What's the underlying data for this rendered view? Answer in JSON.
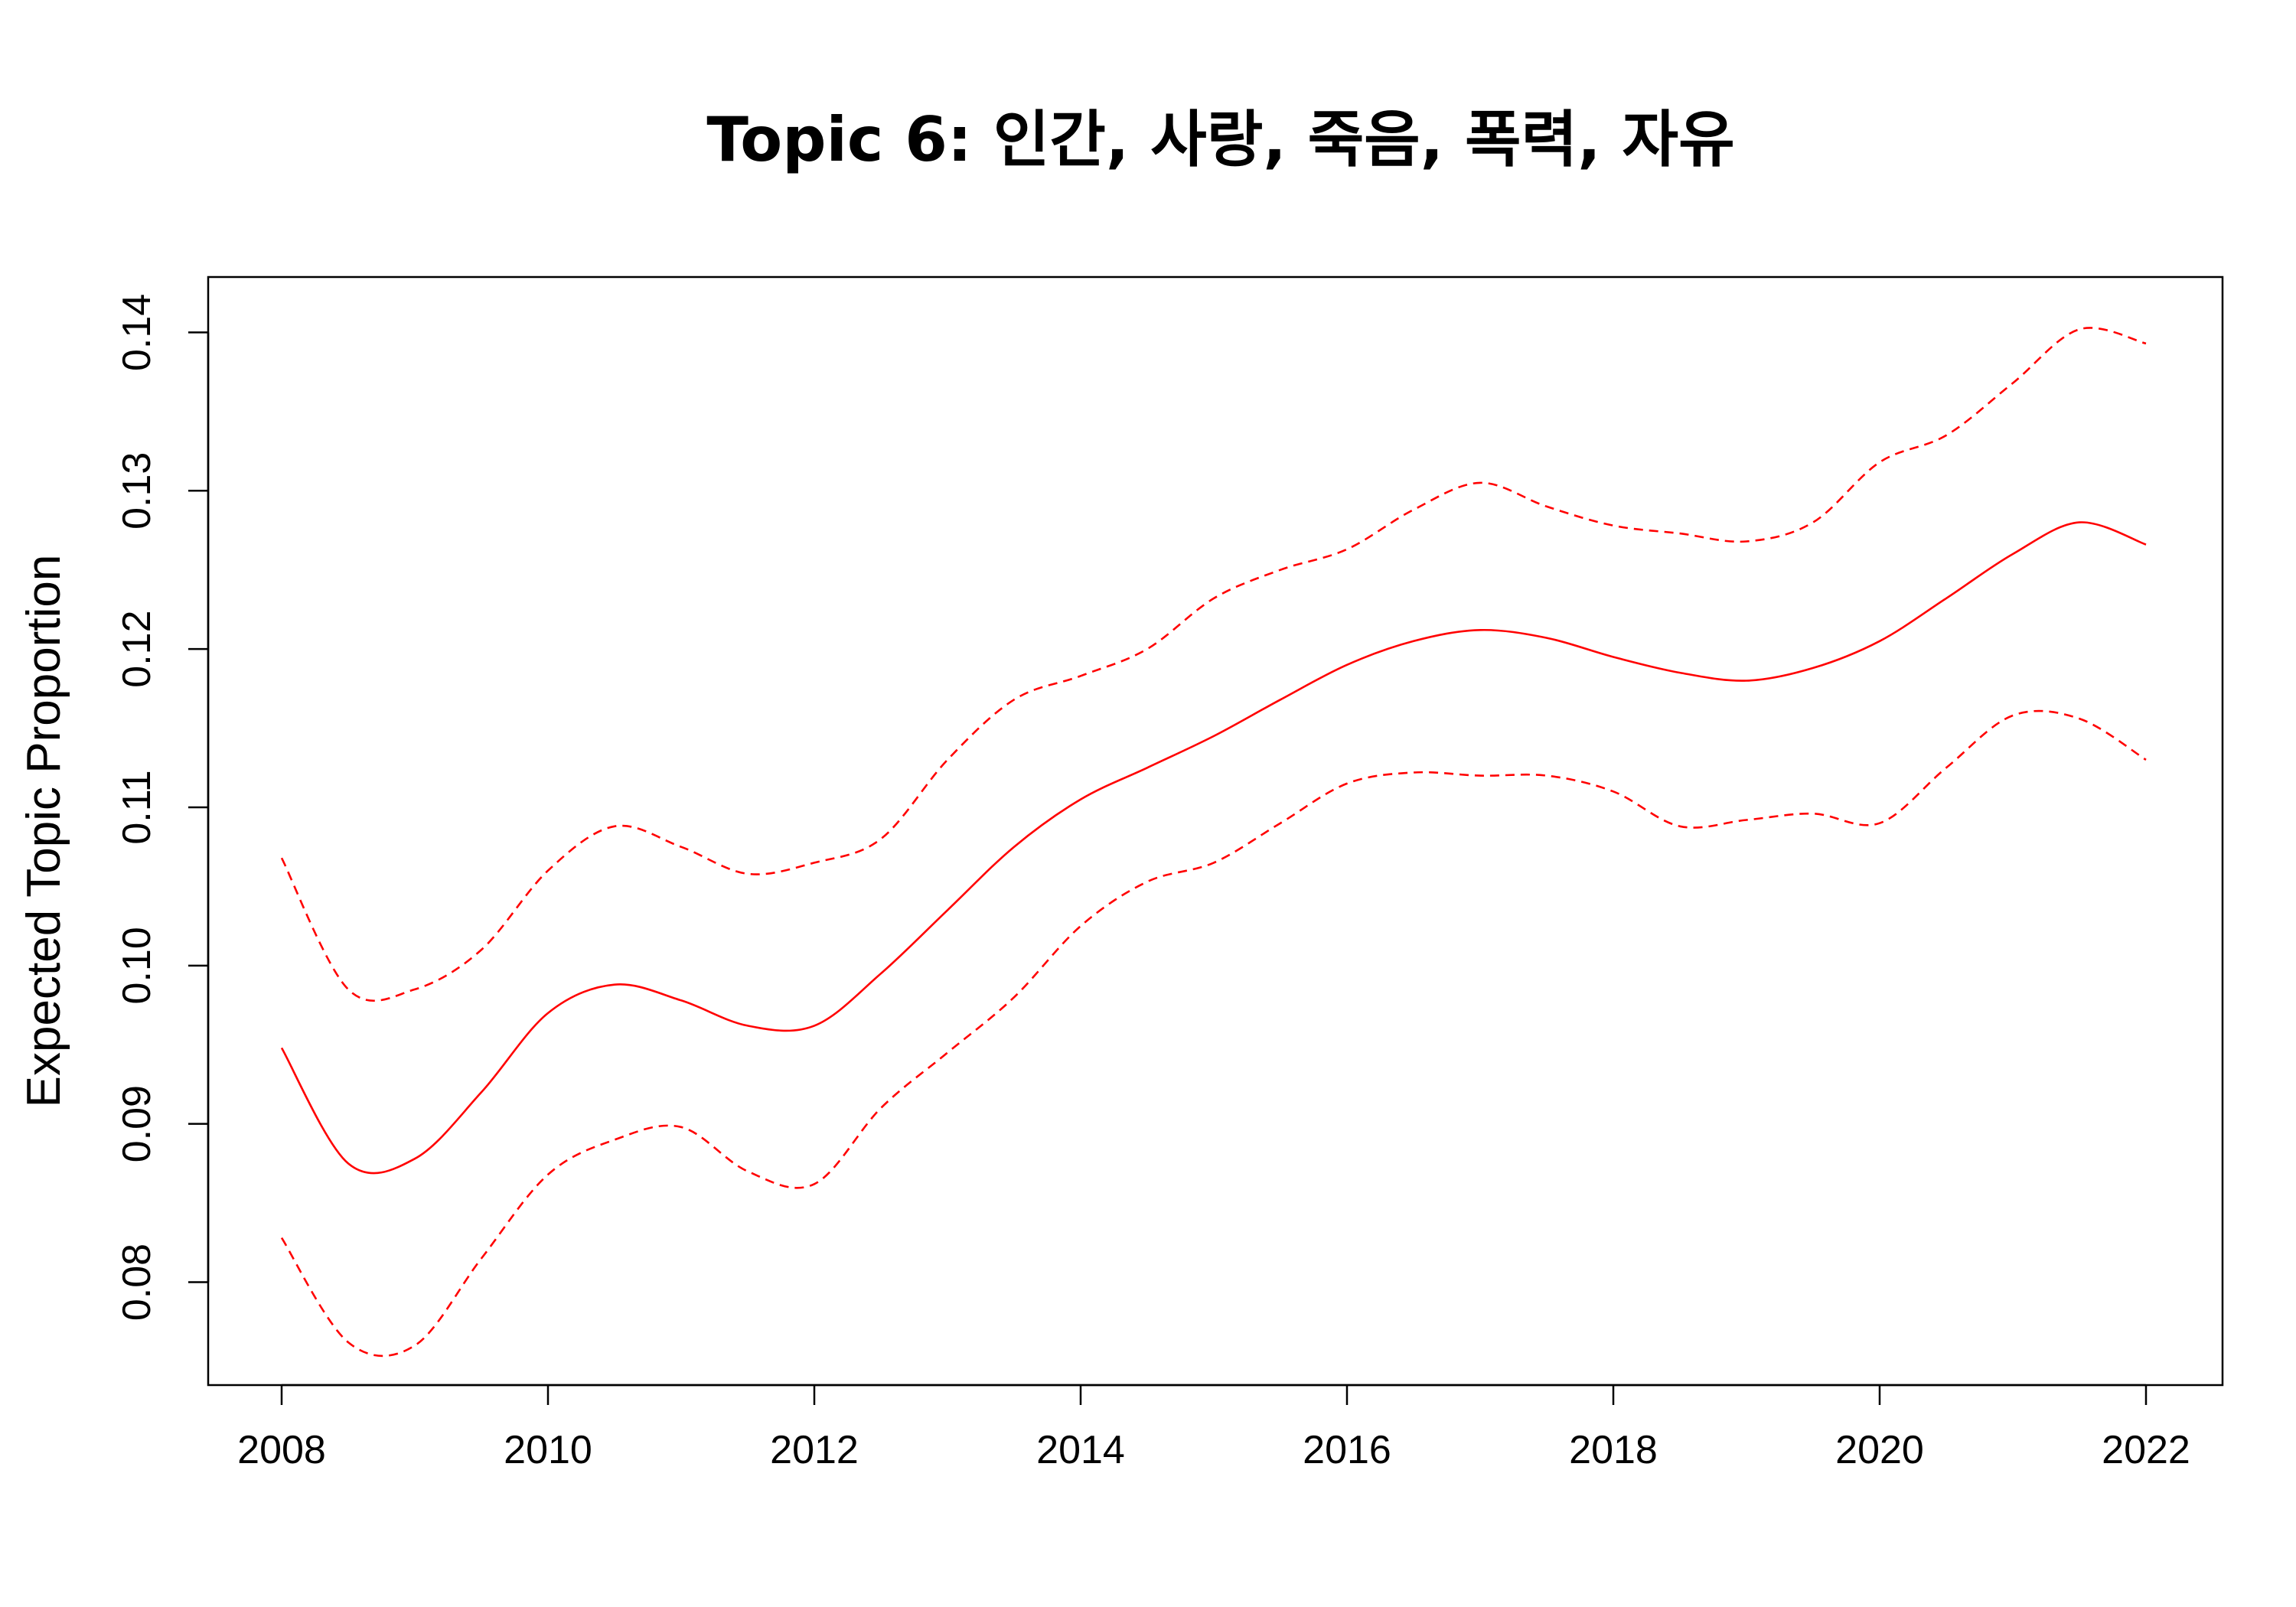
{
  "chart_data": {
    "type": "line",
    "title": "Topic 6: 인간, 사랑, 죽음, 폭력, 자유",
    "xlabel": "",
    "ylabel": "Expected Topic Proportion",
    "xlim": [
      2008,
      2022
    ],
    "ylim": [
      0.0735,
      0.1435
    ],
    "x_ticks": [
      "2008",
      "2010",
      "2012",
      "2014",
      "2016",
      "2018",
      "2020",
      "2022"
    ],
    "y_ticks": [
      "0.08",
      "0.09",
      "0.10",
      "0.11",
      "0.12",
      "0.13",
      "0.14"
    ],
    "grid": false,
    "legend": "none",
    "color": "#ff0000",
    "x": [
      2008.0,
      2008.5,
      2009.0,
      2009.5,
      2010.0,
      2010.5,
      2011.0,
      2011.5,
      2012.0,
      2012.5,
      2013.0,
      2013.5,
      2014.0,
      2014.5,
      2015.0,
      2015.5,
      2016.0,
      2016.5,
      2017.0,
      2017.5,
      2018.0,
      2018.5,
      2019.0,
      2019.5,
      2020.0,
      2020.5,
      2021.0,
      2021.5,
      2022.0
    ],
    "series": [
      {
        "values": [
          0.0948,
          0.0875,
          0.0878,
          0.092,
          0.097,
          0.0988,
          0.0978,
          0.0962,
          0.0962,
          0.0995,
          0.1035,
          0.1075,
          0.1105,
          0.1125,
          0.1145,
          0.1168,
          0.119,
          0.1205,
          0.1212,
          0.1207,
          0.1195,
          0.1185,
          0.118,
          0.1188,
          0.1205,
          0.1232,
          0.126,
          0.128,
          0.1266
        ],
        "style": "solid"
      },
      {
        "values": [
          0.1068,
          0.0985,
          0.0985,
          0.101,
          0.106,
          0.1088,
          0.1075,
          0.1058,
          0.1065,
          0.108,
          0.113,
          0.1168,
          0.1183,
          0.12,
          0.1232,
          0.125,
          0.1263,
          0.1288,
          0.1305,
          0.129,
          0.1278,
          0.1273,
          0.1268,
          0.128,
          0.1318,
          0.1335,
          0.1368,
          0.1402,
          0.1393
        ],
        "style": "dashed"
      },
      {
        "values": [
          0.0828,
          0.0762,
          0.076,
          0.0815,
          0.0868,
          0.089,
          0.0898,
          0.087,
          0.0862,
          0.091,
          0.0945,
          0.098,
          0.1025,
          0.1053,
          0.1065,
          0.109,
          0.1115,
          0.1122,
          0.112,
          0.112,
          0.111,
          0.1088,
          0.1092,
          0.1096,
          0.109,
          0.1125,
          0.1158,
          0.1156,
          0.113
        ],
        "style": "dashed"
      }
    ]
  }
}
